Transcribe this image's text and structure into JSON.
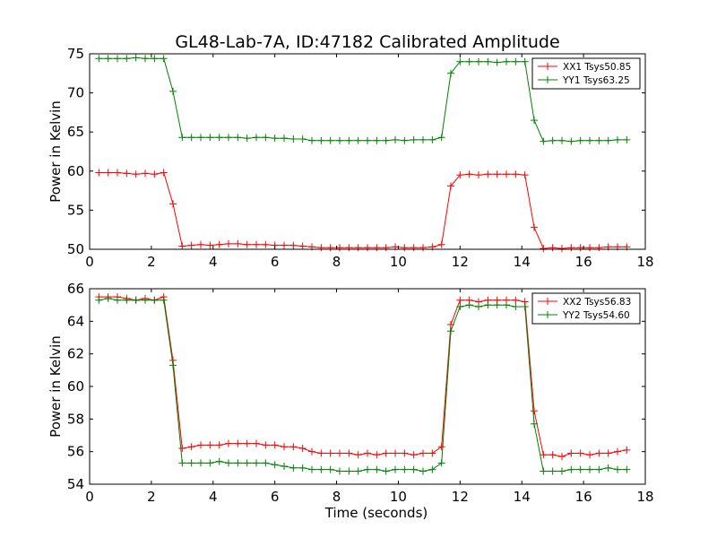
{
  "figure_title": "GL48-Lab-7A, ID:47182 Calibrated Amplitude",
  "colors": {
    "red": "#ff0000",
    "green": "#008000",
    "axis": "#000000"
  },
  "chart_data": [
    {
      "type": "line",
      "title": "GL48-Lab-7A, ID:47182 Calibrated Amplitude",
      "xlabel": "",
      "ylabel": "Power in Kelvin",
      "xlim": [
        0,
        18
      ],
      "ylim": [
        50,
        75
      ],
      "xticks": [
        0,
        2,
        4,
        6,
        8,
        10,
        12,
        14,
        16,
        18
      ],
      "yticks": [
        50,
        55,
        60,
        65,
        70,
        75
      ],
      "grid": false,
      "legend": "top-right",
      "marker": "+",
      "x": [
        0.3,
        0.6,
        0.9,
        1.2,
        1.5,
        1.8,
        2.1,
        2.4,
        2.7,
        3.0,
        3.3,
        3.6,
        3.9,
        4.2,
        4.5,
        4.8,
        5.1,
        5.4,
        5.7,
        6.0,
        6.3,
        6.6,
        6.9,
        7.2,
        7.5,
        7.8,
        8.1,
        8.4,
        8.7,
        9.0,
        9.3,
        9.6,
        9.9,
        10.2,
        10.5,
        10.8,
        11.1,
        11.4,
        11.7,
        12.0,
        12.3,
        12.6,
        12.9,
        13.2,
        13.5,
        13.8,
        14.1,
        14.4,
        14.7,
        15.0,
        15.3,
        15.6,
        15.9,
        16.2,
        16.5,
        16.8,
        17.1,
        17.4
      ],
      "series": [
        {
          "name": "XX1 Tsys50.85",
          "color": "#ff0000",
          "values": [
            59.8,
            59.8,
            59.8,
            59.7,
            59.6,
            59.7,
            59.6,
            59.8,
            55.8,
            50.4,
            50.5,
            50.6,
            50.5,
            50.6,
            50.7,
            50.7,
            50.6,
            50.6,
            50.6,
            50.5,
            50.5,
            50.5,
            50.4,
            50.3,
            50.2,
            50.2,
            50.2,
            50.2,
            50.2,
            50.2,
            50.2,
            50.2,
            50.3,
            50.2,
            50.2,
            50.2,
            50.3,
            50.6,
            58.1,
            59.5,
            59.6,
            59.5,
            59.6,
            59.6,
            59.6,
            59.6,
            59.5,
            52.8,
            50.1,
            50.2,
            50.1,
            50.2,
            50.2,
            50.2,
            50.2,
            50.3,
            50.3,
            50.3
          ]
        },
        {
          "name": "YY1 Tsys63.25",
          "color": "#008000",
          "values": [
            74.4,
            74.4,
            74.4,
            74.4,
            74.5,
            74.4,
            74.4,
            74.4,
            70.2,
            64.3,
            64.3,
            64.3,
            64.3,
            64.3,
            64.3,
            64.3,
            64.2,
            64.3,
            64.3,
            64.2,
            64.2,
            64.1,
            64.1,
            63.9,
            63.9,
            63.9,
            63.9,
            63.9,
            63.9,
            63.9,
            63.9,
            63.9,
            64.0,
            63.9,
            64.0,
            64.0,
            64.0,
            64.3,
            72.5,
            74.0,
            74.0,
            74.0,
            74.0,
            73.9,
            74.0,
            74.0,
            74.0,
            66.5,
            63.8,
            63.9,
            63.9,
            63.8,
            63.9,
            63.9,
            63.9,
            63.9,
            64.0,
            64.0
          ]
        }
      ]
    },
    {
      "type": "line",
      "title": "",
      "xlabel": "Time (seconds)",
      "ylabel": "Power in Kelvin",
      "xlim": [
        0,
        18
      ],
      "ylim": [
        54,
        66
      ],
      "xticks": [
        0,
        2,
        4,
        6,
        8,
        10,
        12,
        14,
        16,
        18
      ],
      "yticks": [
        54,
        56,
        58,
        60,
        62,
        64,
        66
      ],
      "grid": false,
      "legend": "top-right",
      "marker": "+",
      "x": [
        0.3,
        0.6,
        0.9,
        1.2,
        1.5,
        1.8,
        2.1,
        2.4,
        2.7,
        3.0,
        3.3,
        3.6,
        3.9,
        4.2,
        4.5,
        4.8,
        5.1,
        5.4,
        5.7,
        6.0,
        6.3,
        6.6,
        6.9,
        7.2,
        7.5,
        7.8,
        8.1,
        8.4,
        8.7,
        9.0,
        9.3,
        9.6,
        9.9,
        10.2,
        10.5,
        10.8,
        11.1,
        11.4,
        11.7,
        12.0,
        12.3,
        12.6,
        12.9,
        13.2,
        13.5,
        13.8,
        14.1,
        14.4,
        14.7,
        15.0,
        15.3,
        15.6,
        15.9,
        16.2,
        16.5,
        16.8,
        17.1,
        17.4
      ],
      "series": [
        {
          "name": "XX2 Tsys56.83",
          "color": "#ff0000",
          "values": [
            65.5,
            65.5,
            65.5,
            65.4,
            65.3,
            65.4,
            65.3,
            65.5,
            61.6,
            56.2,
            56.3,
            56.4,
            56.4,
            56.4,
            56.5,
            56.5,
            56.5,
            56.5,
            56.4,
            56.4,
            56.3,
            56.3,
            56.2,
            56.0,
            55.9,
            55.9,
            55.9,
            55.9,
            55.8,
            55.9,
            55.8,
            55.9,
            55.9,
            55.9,
            55.8,
            55.9,
            55.9,
            56.3,
            63.8,
            65.3,
            65.3,
            65.2,
            65.3,
            65.3,
            65.3,
            65.3,
            65.2,
            58.5,
            55.8,
            55.8,
            55.7,
            55.9,
            55.9,
            55.8,
            55.9,
            55.9,
            56.0,
            56.1
          ]
        },
        {
          "name": "YY2 Tsys54.60",
          "color": "#008000",
          "values": [
            65.3,
            65.4,
            65.3,
            65.3,
            65.3,
            65.3,
            65.3,
            65.3,
            61.3,
            55.3,
            55.3,
            55.3,
            55.3,
            55.4,
            55.3,
            55.3,
            55.3,
            55.3,
            55.3,
            55.2,
            55.1,
            55.0,
            55.0,
            54.9,
            54.9,
            54.9,
            54.8,
            54.8,
            54.8,
            54.9,
            54.9,
            54.8,
            54.9,
            54.9,
            54.9,
            54.8,
            54.9,
            55.3,
            63.4,
            64.9,
            65.0,
            64.9,
            65.0,
            65.0,
            65.0,
            64.9,
            64.9,
            57.7,
            54.8,
            54.8,
            54.8,
            54.9,
            54.9,
            54.9,
            54.9,
            55.0,
            54.9,
            54.9
          ]
        }
      ]
    }
  ]
}
